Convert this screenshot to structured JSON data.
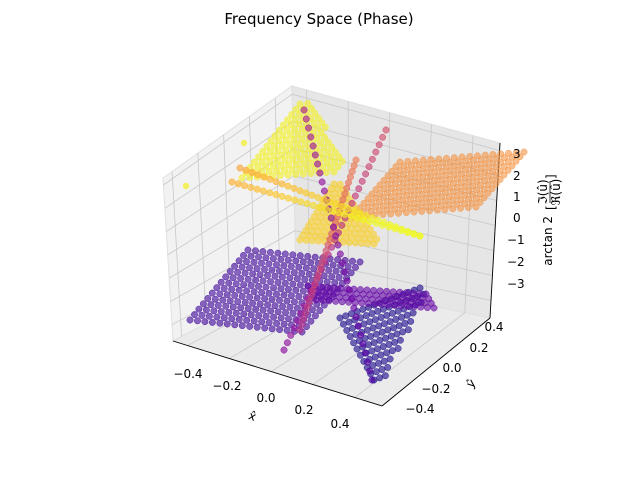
{
  "chart_data": {
    "type": "scatter",
    "title": "Frequency Space (Phase)",
    "xlabel": "x̂",
    "ylabel": "ŷ",
    "zlabel_prefix": "arctan 2",
    "zlabel_numerator": "ℑ(û)",
    "zlabel_denominator": "ℜ(û)",
    "xlim": [
      -0.5,
      0.5
    ],
    "ylim": [
      -0.5,
      0.5
    ],
    "zlim": [
      -3.14,
      3.14
    ],
    "x_ticks": [
      "−0.4",
      "−0.2",
      "0.0",
      "0.2",
      "0.4"
    ],
    "y_ticks": [
      "−0.4",
      "−0.2",
      "0.0",
      "0.2",
      "0.4"
    ],
    "z_ticks": [
      "3",
      "2",
      "1",
      "0",
      "−1",
      "−2",
      "−3"
    ],
    "colormap": [
      "#0d0887",
      "#5c01a6",
      "#9c179e",
      "#cc4778",
      "#ed7953",
      "#fdb42f",
      "#f0f921"
    ],
    "grid": true,
    "series": [
      {
        "region": "back-left-plane",
        "phase": 3.0
      },
      {
        "region": "back-right-plane",
        "phase": 1.5
      },
      {
        "region": "center-plane",
        "phase": 2.5
      },
      {
        "region": "front-left-plane",
        "phase": -2.5
      },
      {
        "region": "front-right-plane",
        "phase": -3.0
      },
      {
        "region": "right-axis-strip",
        "phase": -2.0
      }
    ]
  }
}
